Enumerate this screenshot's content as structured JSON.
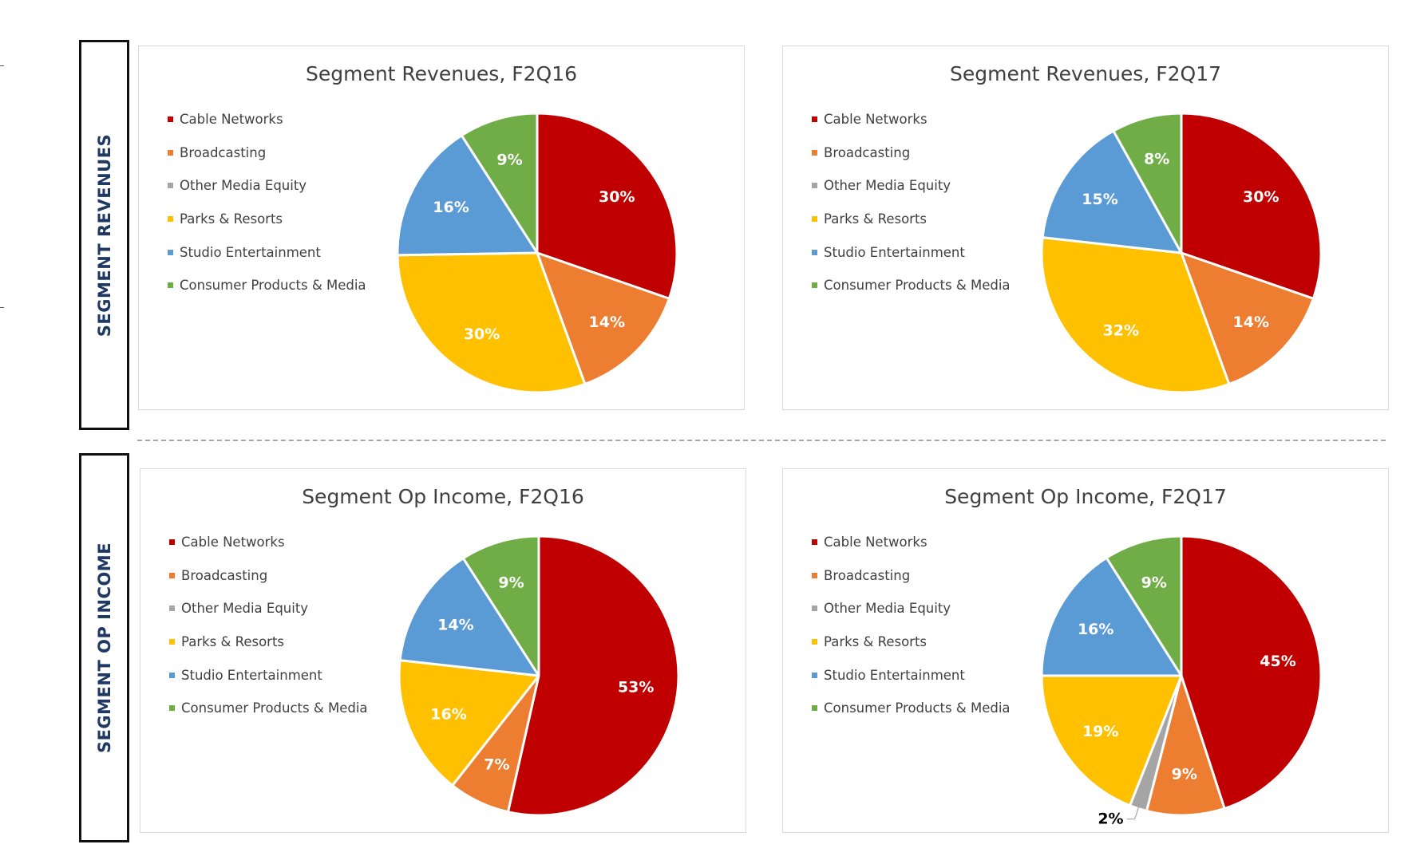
{
  "sections": [
    {
      "label": "SEGMENT REVENUES"
    },
    {
      "label": "SEGMENT OP INCOME"
    }
  ],
  "legend_items": [
    {
      "label": "Cable Networks",
      "color": "#c00000"
    },
    {
      "label": "Broadcasting",
      "color": "#ed7d31"
    },
    {
      "label": "Other Media Equity",
      "color": "#a5a5a5"
    },
    {
      "label": "Parks & Resorts",
      "color": "#ffc000"
    },
    {
      "label": "Studio Entertainment",
      "color": "#5b9bd5"
    },
    {
      "label": "Consumer Products & Media",
      "color": "#70ad47"
    }
  ],
  "chart_data": [
    {
      "type": "pie",
      "title": "Segment Revenues, F2Q16",
      "categories": [
        "Cable Networks",
        "Broadcasting",
        "Other Media Equity",
        "Parks & Resorts",
        "Studio Entertainment",
        "Consumer Products & Media"
      ],
      "values": [
        30,
        14,
        0,
        30,
        16,
        9
      ],
      "labels": [
        "30%",
        "14%",
        "",
        "30%",
        "16%",
        "9%"
      ],
      "legend": "left"
    },
    {
      "type": "pie",
      "title": "Segment Revenues, F2Q17",
      "categories": [
        "Cable Networks",
        "Broadcasting",
        "Other Media Equity",
        "Parks & Resorts",
        "Studio Entertainment",
        "Consumer Products & Media"
      ],
      "values": [
        30,
        14,
        0,
        32,
        15,
        8
      ],
      "labels": [
        "30%",
        "14%",
        "",
        "32%",
        "15%",
        "8%"
      ],
      "legend": "left"
    },
    {
      "type": "pie",
      "title": "Segment Op Income, F2Q16",
      "categories": [
        "Cable Networks",
        "Broadcasting",
        "Other Media Equity",
        "Parks & Resorts",
        "Studio Entertainment",
        "Consumer Products & Media"
      ],
      "values": [
        53,
        7,
        0,
        16,
        14,
        9
      ],
      "labels": [
        "53%",
        "7%",
        "",
        "16%",
        "14%",
        "9%"
      ],
      "legend": "left"
    },
    {
      "type": "pie",
      "title": "Segment Op Income, F2Q17",
      "categories": [
        "Cable Networks",
        "Broadcasting",
        "Other Media Equity",
        "Parks & Resorts",
        "Studio Entertainment",
        "Consumer Products & Media"
      ],
      "values": [
        45,
        9,
        2,
        19,
        16,
        9
      ],
      "labels": [
        "45%",
        "9%",
        "2%",
        "19%",
        "16%",
        "9%"
      ],
      "legend": "left"
    }
  ]
}
